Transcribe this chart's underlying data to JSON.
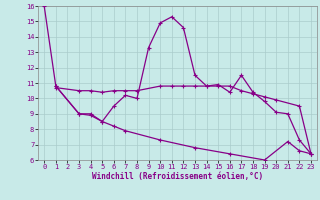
{
  "xlabel": "Windchill (Refroidissement éolien,°C)",
  "background_color": "#c8eae8",
  "grid_color": "#aacccc",
  "line_color": "#880088",
  "xlim": [
    -0.5,
    23.5
  ],
  "ylim": [
    6,
    16
  ],
  "xticks": [
    0,
    1,
    2,
    3,
    4,
    5,
    6,
    7,
    8,
    9,
    10,
    11,
    12,
    13,
    14,
    15,
    16,
    17,
    18,
    19,
    20,
    21,
    22,
    23
  ],
  "yticks": [
    6,
    7,
    8,
    9,
    10,
    11,
    12,
    13,
    14,
    15,
    16
  ],
  "lines": [
    {
      "x": [
        0,
        1,
        3,
        4,
        5,
        6,
        7,
        8,
        9,
        10,
        11,
        12,
        13,
        14,
        15,
        16,
        17,
        18,
        19,
        20,
        21,
        22,
        23
      ],
      "y": [
        16.0,
        10.8,
        9.0,
        9.0,
        8.5,
        9.5,
        10.2,
        10.0,
        13.3,
        14.9,
        15.3,
        14.6,
        11.5,
        10.8,
        10.9,
        10.4,
        11.5,
        10.4,
        9.8,
        9.1,
        9.0,
        7.3,
        6.4
      ]
    },
    {
      "x": [
        1,
        3,
        4,
        5,
        6,
        7,
        8,
        10,
        11,
        12,
        13,
        14,
        15,
        16,
        17,
        18,
        19,
        20,
        22,
        23
      ],
      "y": [
        10.7,
        10.5,
        10.5,
        10.4,
        10.5,
        10.5,
        10.5,
        10.8,
        10.8,
        10.8,
        10.8,
        10.8,
        10.8,
        10.8,
        10.5,
        10.3,
        10.1,
        9.9,
        9.5,
        6.4
      ]
    },
    {
      "x": [
        1,
        3,
        4,
        5,
        6,
        7,
        10,
        13,
        16,
        19,
        21,
        22,
        23
      ],
      "y": [
        10.8,
        9.0,
        8.9,
        8.5,
        8.2,
        7.9,
        7.3,
        6.8,
        6.4,
        6.0,
        7.2,
        6.6,
        6.4
      ]
    }
  ]
}
